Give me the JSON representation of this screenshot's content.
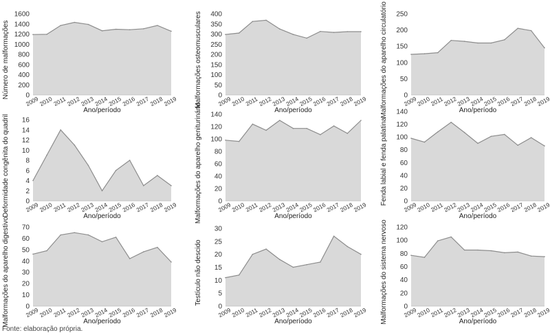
{
  "footnote": "Fonte: elaboração própria.",
  "chart_data": [
    {
      "type": "area",
      "x": [
        "2009",
        "2010",
        "2011",
        "2012",
        "2013",
        "2014",
        "2015",
        "2016",
        "2017",
        "2018",
        "2019"
      ],
      "values": [
        1190,
        1195,
        1370,
        1430,
        1390,
        1265,
        1295,
        1285,
        1305,
        1370,
        1255
      ],
      "ylim": [
        0,
        1600
      ],
      "yticks": [
        0,
        200,
        400,
        600,
        800,
        1000,
        1200,
        1400,
        1600
      ],
      "xlabel": "Ano/período",
      "ylabel": "Número de malformações"
    },
    {
      "type": "area",
      "x": [
        "2009",
        "2010",
        "2011",
        "2012",
        "2013",
        "2014",
        "2015",
        "2016",
        "2017",
        "2018",
        "2019"
      ],
      "values": [
        298,
        305,
        362,
        368,
        325,
        298,
        280,
        313,
        308,
        312,
        312
      ],
      "ylim": [
        0,
        400
      ],
      "yticks": [
        0,
        50,
        100,
        150,
        200,
        250,
        300,
        350,
        400
      ],
      "xlabel": "Ano/período",
      "ylabel": "Malformações osteomusculares"
    },
    {
      "type": "area",
      "x": [
        "2009",
        "2010",
        "2011",
        "2012",
        "2013",
        "2014",
        "2015",
        "2016",
        "2017",
        "2018",
        "2019"
      ],
      "values": [
        125,
        127,
        130,
        168,
        165,
        160,
        160,
        170,
        205,
        198,
        145
      ],
      "ylim": [
        0,
        250
      ],
      "yticks": [
        0,
        50,
        100,
        150,
        200,
        250
      ],
      "xlabel": "Ano/período",
      "ylabel": "Malformações do aparelho circulatório"
    },
    {
      "type": "area",
      "x": [
        "2009",
        "2010",
        "2011",
        "2012",
        "2013",
        "2014",
        "2015",
        "2016",
        "2017",
        "2018",
        "2019"
      ],
      "values": [
        4,
        9,
        14,
        11,
        7,
        2,
        6,
        8,
        3,
        5,
        3
      ],
      "ylim": [
        0,
        16
      ],
      "yticks": [
        0,
        2,
        4,
        6,
        8,
        10,
        12,
        14,
        16
      ],
      "xlabel": "Ano/período",
      "ylabel": "Deformidade congênita do quadril"
    },
    {
      "type": "area",
      "x": [
        "2009",
        "2010",
        "2011",
        "2012",
        "2013",
        "2014",
        "2015",
        "2016",
        "2017",
        "2018",
        "2019"
      ],
      "values": [
        98,
        96,
        124,
        114,
        130,
        117,
        117,
        107,
        121,
        109,
        130
      ],
      "ylim": [
        0,
        140
      ],
      "yticks": [
        0,
        20,
        40,
        60,
        80,
        100,
        120,
        140
      ],
      "xlabel": "Ano/período",
      "ylabel": "Malformações do aparelho geniturinário"
    },
    {
      "type": "area",
      "x": [
        "2009",
        "2010",
        "2011",
        "2012",
        "2013",
        "2014",
        "2015",
        "2016",
        "2017",
        "2018",
        "2019"
      ],
      "values": [
        98,
        92,
        108,
        123,
        107,
        90,
        101,
        104,
        87,
        99,
        86
      ],
      "ylim": [
        0,
        140
      ],
      "yticks": [
        0,
        20,
        40,
        60,
        80,
        100,
        120,
        140
      ],
      "xlabel": "Ano/período",
      "ylabel": "Fenda labial e fenda palatina"
    },
    {
      "type": "area",
      "x": [
        "2009",
        "2010",
        "2011",
        "2012",
        "2013",
        "2014",
        "2015",
        "2016",
        "2017",
        "2018",
        "2019"
      ],
      "values": [
        46,
        49,
        63,
        65,
        63,
        57,
        61,
        42,
        48,
        52,
        39
      ],
      "ylim": [
        0,
        70
      ],
      "yticks": [
        0,
        10,
        20,
        30,
        40,
        50,
        60,
        70
      ],
      "xlabel": "Ano/período",
      "ylabel": "Malformações do aparelho digestivo"
    },
    {
      "type": "area",
      "x": [
        "2009",
        "2010",
        "2011",
        "2012",
        "2013",
        "2014",
        "2015",
        "2016",
        "2017",
        "2018",
        "2019"
      ],
      "values": [
        11,
        12,
        20,
        22,
        18,
        15,
        16,
        17,
        27,
        23,
        20
      ],
      "ylim": [
        0,
        30
      ],
      "yticks": [
        0,
        5,
        10,
        15,
        20,
        25,
        30
      ],
      "xlabel": "Ano/período",
      "ylabel": "Testículo não descido"
    },
    {
      "type": "area",
      "x": [
        "2009",
        "2010",
        "2011",
        "2012",
        "2013",
        "2014",
        "2015",
        "2016",
        "2017",
        "2018",
        "2019"
      ],
      "values": [
        77,
        74,
        99,
        105,
        85,
        85,
        84,
        81,
        82,
        76,
        75
      ],
      "ylim": [
        0,
        120
      ],
      "yticks": [
        0,
        20,
        40,
        60,
        80,
        100,
        120
      ],
      "xlabel": "Ano/período",
      "ylabel": "Malformações do sistema nervoso"
    }
  ]
}
